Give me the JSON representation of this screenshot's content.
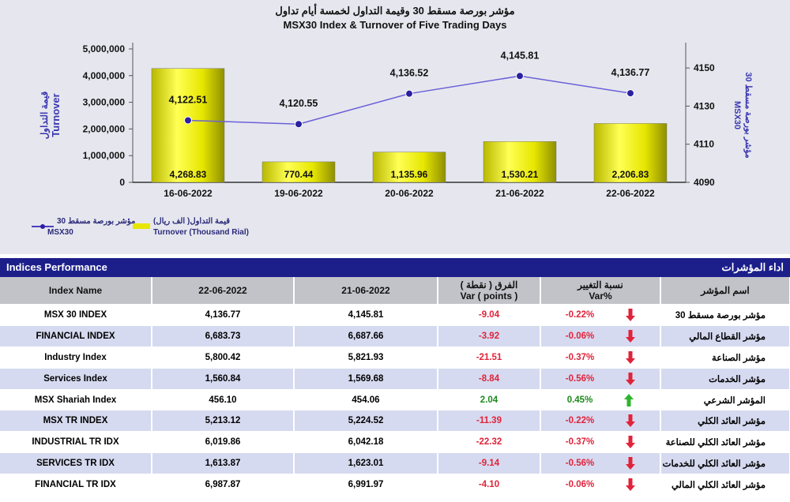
{
  "chart": {
    "title_ar": "مؤشر بورصة مسقط 30 وقيمة التداول لخمسة أيام تداول",
    "title_en": "MSX30 Index & Turnover of Five Trading Days",
    "left_axis_label_ar": "قيمة التداول",
    "left_axis_label_en": "Turnover",
    "right_axis_label_ar": "مؤشر بورصة مسقط 30",
    "right_axis_label_en": "MSX30",
    "legend": [
      {
        "ar": "مؤشر بورصة مسقط 30",
        "en": "MSX30",
        "color": "#4b3fbf"
      },
      {
        "ar": "قيمة التداول( الف ريال)",
        "en": "Turnover (Thousand Rial)",
        "color": "#e6e600"
      }
    ]
  },
  "chart_data": {
    "type": "bar",
    "title": "MSX30 Index & Turnover of Five Trading Days",
    "categories": [
      "16-06-2022",
      "19-06-2022",
      "20-06-2022",
      "21-06-2022",
      "22-06-2022"
    ],
    "series": [
      {
        "name": "Turnover (Thousand Rial)",
        "type": "bar",
        "axis": "left",
        "values": [
          4268.83,
          770.44,
          1135.96,
          1530.21,
          2206.83
        ],
        "labels": [
          "4,268.83",
          "770.44",
          "1,135.96",
          "1,530.21",
          "2,206.83"
        ]
      },
      {
        "name": "MSX30",
        "type": "line",
        "axis": "right",
        "values": [
          4122.51,
          4120.55,
          4136.52,
          4145.81,
          4136.77
        ],
        "labels": [
          "4,122.51",
          "4,120.55",
          "4,136.52",
          "4,145.81",
          "4,136.77"
        ]
      }
    ],
    "left_axis": {
      "min": 0,
      "max": 5000000,
      "ticks": [
        "0",
        "1,000,000",
        "2,000,000",
        "3,000,000",
        "4,000,000",
        "5,000,000"
      ]
    },
    "right_axis": {
      "min": 4090,
      "max": 4160,
      "ticks": [
        "4090",
        "4110",
        "4130",
        "4150"
      ]
    },
    "bar_scale_factor": 1000,
    "colors": {
      "bar": "#e6e600",
      "line": "#6a60d8",
      "marker": "#2a20a0"
    }
  },
  "table": {
    "title_en": "Indices Performance",
    "title_ar": "اداء المؤشرات",
    "columns": [
      "Index Name",
      "22-06-2022",
      "21-06-2022",
      "الفرق ( نقطة )\nVar ( points )",
      "نسبة التغيير\nVar%",
      "اسم المؤشر"
    ],
    "col_var_ar": "الفرق ( نقطة )",
    "col_var_en": "Var ( points )",
    "col_pct_ar": "نسبة التغيير",
    "col_pct_en": "Var%",
    "rows": [
      {
        "name": "MSX 30 INDEX",
        "d1": "4,136.77",
        "d2": "4,145.81",
        "var": "-9.04",
        "pct": "-0.22%",
        "dir": "down",
        "ar": "مؤشر بورصة مسقط 30"
      },
      {
        "name": "FINANCIAL INDEX",
        "d1": "6,683.73",
        "d2": "6,687.66",
        "var": "-3.92",
        "pct": "-0.06%",
        "dir": "down",
        "ar": "مؤشر القطاع المالي"
      },
      {
        "name": "Industry Index",
        "d1": "5,800.42",
        "d2": "5,821.93",
        "var": "-21.51",
        "pct": "-0.37%",
        "dir": "down",
        "ar": "مؤشر الصناعة"
      },
      {
        "name": "Services Index",
        "d1": "1,560.84",
        "d2": "1,569.68",
        "var": "-8.84",
        "pct": "-0.56%",
        "dir": "down",
        "ar": "مؤشر الخدمات"
      },
      {
        "name": "MSX Shariah Index",
        "d1": "456.10",
        "d2": "454.06",
        "var": "2.04",
        "pct": "0.45%",
        "dir": "up",
        "ar": "المؤشر الشرعي"
      },
      {
        "name": "MSX TR INDEX",
        "d1": "5,213.12",
        "d2": "5,224.52",
        "var": "-11.39",
        "pct": "-0.22%",
        "dir": "down",
        "ar": "مؤشر العائد الكلي"
      },
      {
        "name": "INDUSTRIAL TR IDX",
        "d1": "6,019.86",
        "d2": "6,042.18",
        "var": "-22.32",
        "pct": "-0.37%",
        "dir": "down",
        "ar": "مؤشر العائد الكلي للصناعة"
      },
      {
        "name": "SERVICES TR IDX",
        "d1": "1,613.87",
        "d2": "1,623.01",
        "var": "-9.14",
        "pct": "-0.56%",
        "dir": "down",
        "ar": "مؤشر العائد الكلي للخدمات"
      },
      {
        "name": "FINANCIAL TR IDX",
        "d1": "6,987.87",
        "d2": "6,991.97",
        "var": "-4.10",
        "pct": "-0.06%",
        "dir": "down",
        "ar": "مؤشر العائد الكلي المالي"
      }
    ]
  }
}
